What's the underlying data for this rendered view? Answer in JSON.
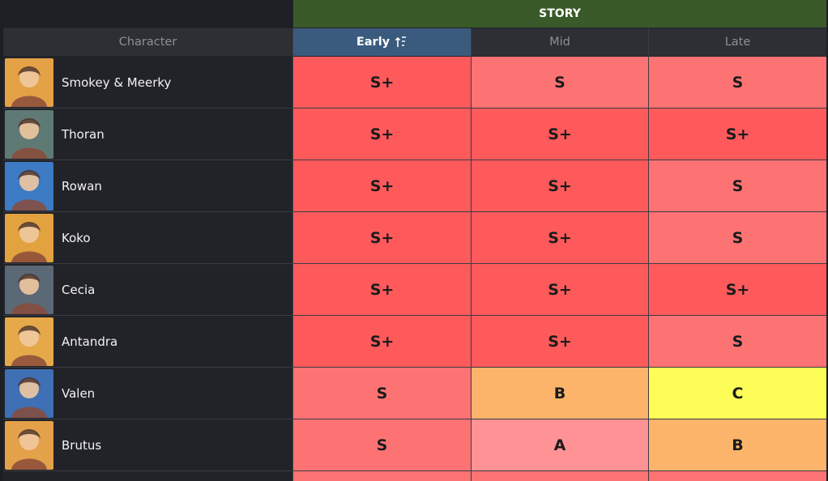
{
  "table": {
    "group_header": "STORY",
    "headers": {
      "character": "Character",
      "early": "Early",
      "mid": "Mid",
      "late": "Late"
    },
    "sort_icon": "sort-ascending-icon",
    "tier_colors": {
      "S+": "#fe5a5b",
      "S": "#fd7374",
      "A": "#fe9294",
      "B": "#fcb46b",
      "C": "#fdfd58"
    },
    "rows": [
      {
        "name": "Smokey & Meerky",
        "early": "S+",
        "mid": "S",
        "late": "S",
        "avatar_bg": "#e4a146"
      },
      {
        "name": "Thoran",
        "early": "S+",
        "mid": "S+",
        "late": "S+",
        "avatar_bg": "#5f7a74"
      },
      {
        "name": "Rowan",
        "early": "S+",
        "mid": "S+",
        "late": "S",
        "avatar_bg": "#3d7bc4"
      },
      {
        "name": "Koko",
        "early": "S+",
        "mid": "S+",
        "late": "S",
        "avatar_bg": "#e2a240"
      },
      {
        "name": "Cecia",
        "early": "S+",
        "mid": "S+",
        "late": "S+",
        "avatar_bg": "#5b6876"
      },
      {
        "name": "Antandra",
        "early": "S+",
        "mid": "S+",
        "late": "S",
        "avatar_bg": "#e6a94a"
      },
      {
        "name": "Valen",
        "early": "S",
        "mid": "B",
        "late": "C",
        "avatar_bg": "#3f6fb4"
      },
      {
        "name": "Brutus",
        "early": "S",
        "mid": "A",
        "late": "B",
        "avatar_bg": "#e3a14a"
      }
    ]
  }
}
